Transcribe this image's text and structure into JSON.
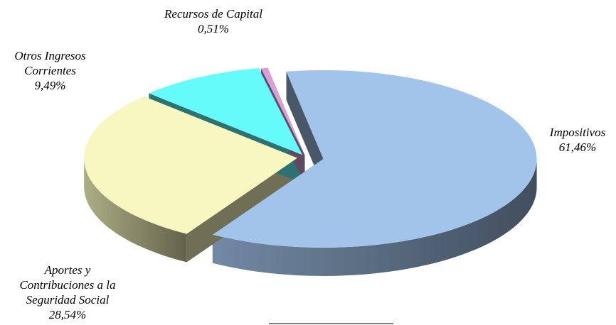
{
  "chart_data": {
    "type": "pie3d",
    "categories": [
      "Impositivos",
      "Aportes y Contribuciones a la Seguridad Social",
      "Otros Ingresos Corrientes",
      "Recursos de Capital"
    ],
    "values": [
      61.46,
      28.54,
      9.49,
      0.51
    ],
    "value_labels": [
      "61,46%",
      "28,54%",
      "9,49%",
      "0,51%"
    ],
    "colors": [
      "#a3c4ea",
      "#f7f7bf",
      "#66fbfb",
      "#d8a0d8"
    ]
  }
}
